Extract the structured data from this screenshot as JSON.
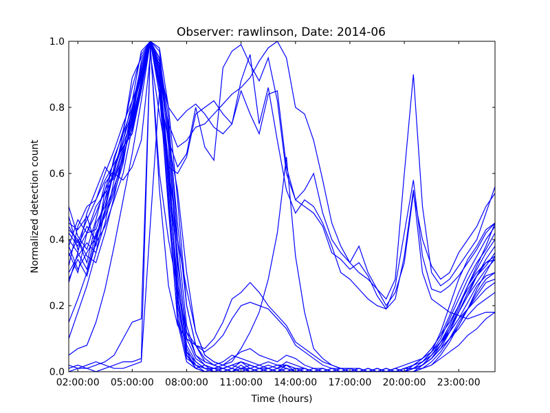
{
  "chart_data": {
    "type": "line",
    "title": "Observer: rawlinson, Date: 2014-06",
    "xlabel": "Time (hours)",
    "ylabel": "Normalized detection count",
    "x_unit": "hours",
    "xlim": [
      1.5,
      25
    ],
    "ylim": [
      0,
      1
    ],
    "x_ticks": [
      2,
      5,
      8,
      11,
      14,
      17,
      20,
      23
    ],
    "x_tick_labels": [
      "02:00:00",
      "05:00:00",
      "08:00:00",
      "11:00:00",
      "14:00:00",
      "17:00:00",
      "20:00:00",
      "23:00:00"
    ],
    "y_ticks": [
      0.0,
      0.2,
      0.4,
      0.6,
      0.8,
      1.0
    ],
    "y_tick_labels": [
      "0.0",
      "0.2",
      "0.4",
      "0.6",
      "0.8",
      "1.0"
    ],
    "grid": false,
    "legend": "none",
    "line_color": "#0000ff",
    "x": [
      1.5,
      2,
      2.5,
      3,
      3.5,
      4,
      4.5,
      5,
      5.5,
      6,
      6.5,
      7,
      7.5,
      8,
      8.5,
      9,
      9.5,
      10,
      10.5,
      11,
      11.5,
      12,
      12.5,
      13,
      13.5,
      14,
      14.5,
      15,
      15.5,
      16,
      16.5,
      17,
      17.5,
      18,
      18.5,
      19,
      19.5,
      20,
      20.5,
      21,
      21.5,
      22,
      22.5,
      23,
      23.5,
      24,
      24.5,
      25
    ],
    "series": [
      {
        "values": [
          0.38,
          0.46,
          0.42,
          0.43,
          0.52,
          0.6,
          0.72,
          0.89,
          0.95,
          1.0,
          0.97,
          0.72,
          0.3,
          0.08,
          0.03,
          0.01,
          0.0,
          0.01,
          0.02,
          0.01,
          0.02,
          0.01,
          0.0,
          0.01,
          0.02,
          0.01,
          0.0,
          0.0,
          0.01,
          0.0,
          0.0,
          0.0,
          0.01,
          0.0,
          0.0,
          0.0,
          0.01,
          0.0,
          0.01,
          0.02,
          0.04,
          0.08,
          0.13,
          0.18,
          0.24,
          0.29,
          0.33,
          0.34
        ]
      },
      {
        "values": [
          0.42,
          0.38,
          0.44,
          0.4,
          0.48,
          0.55,
          0.66,
          0.8,
          0.93,
          1.0,
          0.92,
          0.6,
          0.24,
          0.05,
          0.02,
          0.0,
          0.01,
          0.0,
          0.01,
          0.03,
          0.01,
          0.0,
          0.01,
          0.0,
          0.01,
          0.0,
          0.01,
          0.0,
          0.0,
          0.01,
          0.0,
          0.01,
          0.0,
          0.0,
          0.01,
          0.0,
          0.0,
          0.01,
          0.02,
          0.04,
          0.07,
          0.11,
          0.15,
          0.2,
          0.26,
          0.31,
          0.36,
          0.4
        ]
      },
      {
        "values": [
          0.35,
          0.4,
          0.33,
          0.45,
          0.5,
          0.62,
          0.7,
          0.82,
          0.97,
          1.0,
          0.88,
          0.55,
          0.2,
          0.06,
          0.01,
          0.02,
          0.0,
          0.01,
          0.0,
          0.02,
          0.0,
          0.01,
          0.0,
          0.0,
          0.01,
          0.0,
          0.0,
          0.01,
          0.0,
          0.0,
          0.01,
          0.0,
          0.0,
          0.0,
          0.0,
          0.01,
          0.0,
          0.0,
          0.01,
          0.03,
          0.06,
          0.12,
          0.2,
          0.28,
          0.34,
          0.38,
          0.43,
          0.45
        ]
      },
      {
        "values": [
          0.3,
          0.35,
          0.39,
          0.36,
          0.45,
          0.58,
          0.67,
          0.78,
          0.9,
          1.0,
          0.95,
          0.68,
          0.18,
          0.04,
          0.02,
          0.01,
          0.01,
          0.0,
          0.0,
          0.01,
          0.01,
          0.0,
          0.0,
          0.01,
          0.0,
          0.01,
          0.0,
          0.0,
          0.0,
          0.01,
          0.0,
          0.0,
          0.01,
          0.0,
          0.0,
          0.0,
          0.01,
          0.0,
          0.0,
          0.02,
          0.05,
          0.09,
          0.14,
          0.2,
          0.25,
          0.29,
          0.32,
          0.36
        ]
      },
      {
        "values": [
          0.45,
          0.43,
          0.47,
          0.38,
          0.55,
          0.64,
          0.73,
          0.86,
          0.96,
          1.0,
          0.9,
          0.58,
          0.27,
          0.07,
          0.02,
          0.01,
          0.0,
          0.0,
          0.01,
          0.0,
          0.0,
          0.01,
          0.0,
          0.0,
          0.0,
          0.01,
          0.0,
          0.0,
          0.01,
          0.0,
          0.0,
          0.0,
          0.0,
          0.01,
          0.0,
          0.0,
          0.0,
          0.01,
          0.01,
          0.02,
          0.04,
          0.07,
          0.1,
          0.15,
          0.19,
          0.24,
          0.28,
          0.3
        ]
      },
      {
        "values": [
          0.5,
          0.41,
          0.37,
          0.46,
          0.57,
          0.61,
          0.69,
          0.76,
          0.92,
          1.0,
          0.94,
          0.73,
          0.35,
          0.1,
          0.04,
          0.02,
          0.01,
          0.02,
          0.01,
          0.0,
          0.01,
          0.02,
          0.01,
          0.0,
          0.02,
          0.0,
          0.01,
          0.0,
          0.0,
          0.0,
          0.01,
          0.0,
          0.0,
          0.01,
          0.0,
          0.0,
          0.0,
          0.0,
          0.02,
          0.03,
          0.06,
          0.1,
          0.16,
          0.22,
          0.28,
          0.33,
          0.37,
          0.42
        ]
      },
      {
        "values": [
          0.4,
          0.36,
          0.31,
          0.42,
          0.47,
          0.54,
          0.63,
          0.79,
          0.89,
          1.0,
          0.86,
          0.49,
          0.16,
          0.05,
          0.01,
          0.0,
          0.0,
          0.01,
          0.0,
          0.01,
          0.0,
          0.0,
          0.01,
          0.0,
          0.0,
          0.0,
          0.0,
          0.01,
          0.0,
          0.0,
          0.0,
          0.0,
          0.01,
          0.0,
          0.01,
          0.0,
          0.0,
          0.0,
          0.01,
          0.02,
          0.04,
          0.08,
          0.13,
          0.19,
          0.26,
          0.32,
          0.38,
          0.45
        ]
      },
      {
        "values": [
          0.28,
          0.34,
          0.29,
          0.39,
          0.44,
          0.52,
          0.6,
          0.74,
          0.87,
          1.0,
          0.91,
          0.63,
          0.22,
          0.06,
          0.03,
          0.01,
          0.01,
          0.0,
          0.0,
          0.0,
          0.01,
          0.0,
          0.0,
          0.0,
          0.01,
          0.0,
          0.0,
          0.0,
          0.0,
          0.0,
          0.0,
          0.01,
          0.0,
          0.0,
          0.0,
          0.0,
          0.0,
          0.0,
          0.0,
          0.01,
          0.03,
          0.06,
          0.1,
          0.14,
          0.19,
          0.23,
          0.27,
          0.28
        ]
      },
      {
        "values": [
          0.15,
          0.22,
          0.3,
          0.4,
          0.52,
          0.65,
          0.72,
          0.8,
          0.91,
          1.0,
          0.93,
          0.74,
          0.45,
          0.2,
          0.08,
          0.03,
          0.02,
          0.01,
          0.02,
          0.03,
          0.02,
          0.01,
          0.02,
          0.01,
          0.03,
          0.02,
          0.01,
          0.0,
          0.01,
          0.0,
          0.0,
          0.0,
          0.01,
          0.0,
          0.0,
          0.01,
          0.0,
          0.0,
          0.01,
          0.03,
          0.05,
          0.08,
          0.12,
          0.16,
          0.21,
          0.26,
          0.29,
          0.3
        ]
      },
      {
        "values": [
          0.1,
          0.18,
          0.26,
          0.36,
          0.49,
          0.61,
          0.7,
          0.79,
          0.9,
          1.0,
          0.95,
          0.77,
          0.4,
          0.14,
          0.05,
          0.02,
          0.01,
          0.01,
          0.0,
          0.01,
          0.0,
          0.0,
          0.01,
          0.0,
          0.0,
          0.0,
          0.01,
          0.0,
          0.0,
          0.0,
          0.0,
          0.0,
          0.0,
          0.0,
          0.0,
          0.0,
          0.0,
          0.01,
          0.01,
          0.02,
          0.05,
          0.09,
          0.13,
          0.18,
          0.23,
          0.27,
          0.31,
          0.34
        ]
      },
      {
        "values": [
          0.05,
          0.07,
          0.08,
          0.15,
          0.25,
          0.38,
          0.52,
          0.66,
          0.82,
          1.0,
          0.84,
          0.52,
          0.15,
          0.03,
          0.01,
          0.0,
          0.0,
          0.0,
          0.01,
          0.0,
          0.0,
          0.0,
          0.0,
          0.0,
          0.0,
          0.0,
          0.0,
          0.0,
          0.0,
          0.0,
          0.0,
          0.0,
          0.0,
          0.0,
          0.0,
          0.0,
          0.0,
          0.0,
          0.0,
          0.01,
          0.02,
          0.05,
          0.09,
          0.14,
          0.19,
          0.25,
          0.3,
          0.35
        ]
      },
      {
        "values": [
          0.47,
          0.37,
          0.42,
          0.5,
          0.54,
          0.59,
          0.68,
          0.73,
          0.86,
          1.0,
          0.92,
          0.7,
          0.55,
          0.3,
          0.12,
          0.05,
          0.03,
          0.02,
          0.04,
          0.06,
          0.07,
          0.05,
          0.04,
          0.03,
          0.05,
          0.04,
          0.02,
          0.01,
          0.01,
          0.0,
          0.01,
          0.0,
          0.0,
          0.01,
          0.0,
          0.0,
          0.01,
          0.0,
          0.02,
          0.04,
          0.07,
          0.11,
          0.17,
          0.24,
          0.3,
          0.35,
          0.4,
          0.44
        ]
      },
      {
        "values": [
          0.43,
          0.4,
          0.35,
          0.33,
          0.42,
          0.53,
          0.65,
          0.75,
          0.88,
          1.0,
          0.98,
          0.8,
          0.52,
          0.2,
          0.08,
          0.04,
          0.02,
          0.03,
          0.05,
          0.04,
          0.03,
          0.02,
          0.03,
          0.02,
          0.02,
          0.01,
          0.01,
          0.0,
          0.0,
          0.01,
          0.0,
          0.0,
          0.0,
          0.0,
          0.0,
          0.0,
          0.0,
          0.01,
          0.02,
          0.03,
          0.05,
          0.09,
          0.14,
          0.2,
          0.26,
          0.3,
          0.33,
          0.35
        ]
      },
      {
        "values": [
          0.38,
          0.31,
          0.36,
          0.41,
          0.49,
          0.56,
          0.64,
          0.77,
          0.94,
          1.0,
          0.87,
          0.6,
          0.33,
          0.12,
          0.05,
          0.03,
          0.02,
          0.01,
          0.02,
          0.03,
          0.02,
          0.01,
          0.01,
          0.02,
          0.01,
          0.0,
          0.01,
          0.0,
          0.0,
          0.0,
          0.0,
          0.0,
          0.0,
          0.0,
          0.01,
          0.0,
          0.0,
          0.0,
          0.01,
          0.02,
          0.04,
          0.07,
          0.12,
          0.18,
          0.23,
          0.29,
          0.34,
          0.38
        ]
      },
      {
        "values": [
          0.01,
          0.02,
          0.01,
          0.02,
          0.03,
          0.05,
          0.1,
          0.15,
          0.16,
          0.98,
          0.6,
          0.4,
          0.25,
          0.12,
          0.08,
          0.07,
          0.1,
          0.15,
          0.22,
          0.24,
          0.27,
          0.24,
          0.2,
          0.17,
          0.14,
          0.09,
          0.07,
          0.05,
          0.03,
          0.02,
          0.01,
          0.01,
          0.01,
          0.0,
          0.01,
          0.0,
          0.01,
          0.02,
          0.03,
          0.04,
          0.06,
          0.09,
          0.12,
          0.16,
          0.19,
          0.22,
          0.25,
          0.27
        ]
      },
      {
        "values": [
          0.0,
          0.01,
          0.01,
          0.0,
          0.01,
          0.02,
          0.03,
          0.03,
          0.04,
          0.99,
          0.55,
          0.26,
          0.14,
          0.1,
          0.08,
          0.06,
          0.08,
          0.11,
          0.16,
          0.2,
          0.21,
          0.2,
          0.19,
          0.16,
          0.13,
          0.08,
          0.06,
          0.04,
          0.02,
          0.01,
          0.01,
          0.0,
          0.0,
          0.0,
          0.0,
          0.0,
          0.0,
          0.01,
          0.01,
          0.02,
          0.04,
          0.07,
          0.1,
          0.13,
          0.17,
          0.2,
          0.22,
          0.24
        ]
      },
      {
        "values": [
          0.02,
          0.01,
          0.02,
          0.03,
          0.02,
          0.01,
          0.01,
          0.02,
          0.03,
          0.45,
          0.85,
          0.62,
          0.4,
          0.25,
          0.12,
          0.05,
          0.03,
          0.02,
          0.03,
          0.07,
          0.12,
          0.18,
          0.28,
          0.42,
          0.65,
          0.35,
          0.18,
          0.07,
          0.04,
          0.02,
          0.01,
          0.01,
          0.0,
          0.0,
          0.0,
          0.01,
          0.0,
          0.0,
          0.01,
          0.01,
          0.02,
          0.04,
          0.06,
          0.08,
          0.11,
          0.13,
          0.16,
          0.18
        ]
      },
      {
        "values": [
          0.36,
          0.3,
          0.42,
          0.48,
          0.55,
          0.6,
          0.58,
          0.62,
          0.7,
          0.96,
          0.78,
          0.62,
          0.6,
          0.65,
          0.78,
          0.8,
          0.82,
          0.78,
          0.75,
          0.88,
          0.96,
          0.75,
          0.86,
          0.7,
          0.55,
          0.48,
          0.52,
          0.5,
          0.45,
          0.38,
          0.3,
          0.28,
          0.25,
          0.22,
          0.2,
          0.19,
          0.22,
          0.35,
          0.55,
          0.3,
          0.22,
          0.2,
          0.18,
          0.17,
          0.16,
          0.17,
          0.18,
          0.18
        ]
      },
      {
        "values": [
          0.32,
          0.44,
          0.5,
          0.52,
          0.58,
          0.63,
          0.68,
          0.72,
          0.85,
          1.0,
          0.84,
          0.7,
          0.62,
          0.66,
          0.8,
          0.68,
          0.64,
          0.92,
          0.97,
          0.99,
          0.93,
          0.88,
          0.95,
          0.82,
          0.6,
          0.52,
          0.55,
          0.6,
          0.48,
          0.4,
          0.36,
          0.33,
          0.38,
          0.3,
          0.25,
          0.22,
          0.28,
          0.6,
          0.9,
          0.5,
          0.3,
          0.26,
          0.28,
          0.32,
          0.36,
          0.4,
          0.48,
          0.56
        ]
      },
      {
        "values": [
          0.44,
          0.39,
          0.46,
          0.52,
          0.6,
          0.67,
          0.75,
          0.82,
          0.9,
          0.99,
          0.89,
          0.75,
          0.68,
          0.7,
          0.74,
          0.75,
          0.78,
          0.81,
          0.84,
          0.86,
          0.89,
          0.94,
          0.98,
          1.0,
          0.95,
          0.8,
          0.78,
          0.7,
          0.58,
          0.45,
          0.38,
          0.33,
          0.3,
          0.28,
          0.25,
          0.2,
          0.24,
          0.33,
          0.54,
          0.4,
          0.32,
          0.28,
          0.3,
          0.36,
          0.4,
          0.44,
          0.5,
          0.54
        ]
      },
      {
        "values": [
          0.27,
          0.36,
          0.48,
          0.55,
          0.62,
          0.58,
          0.65,
          0.76,
          0.88,
          1.0,
          0.92,
          0.8,
          0.76,
          0.79,
          0.81,
          0.78,
          0.74,
          0.72,
          0.75,
          0.85,
          0.78,
          0.72,
          0.84,
          0.85,
          0.62,
          0.52,
          0.5,
          0.48,
          0.44,
          0.36,
          0.34,
          0.31,
          0.33,
          0.29,
          0.23,
          0.19,
          0.26,
          0.42,
          0.58,
          0.35,
          0.25,
          0.24,
          0.26,
          0.29,
          0.33,
          0.37,
          0.42,
          0.45
        ]
      }
    ]
  }
}
